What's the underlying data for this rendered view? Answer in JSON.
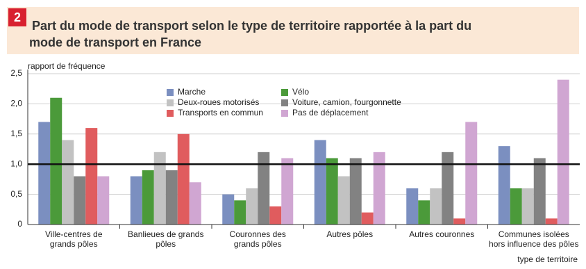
{
  "badge": "2",
  "chart_data": {
    "type": "bar",
    "title": "Part du mode de transport selon le type de territoire rapportée à la part du mode de transport en France",
    "y_label": "rapport de fréquence",
    "x_label": "type de territoire",
    "categories": [
      "Ville-centres de\ngrands pôles",
      "Banlieues de grands\npôles",
      "Couronnes des\ngrands pôles",
      "Autres pôles",
      "Autres couronnes",
      "Communes isolées\nhors influence des pôles"
    ],
    "series": [
      {
        "name": "Marche",
        "color": "#7b8fc0",
        "values": [
          1.7,
          0.8,
          0.5,
          1.4,
          0.6,
          1.3
        ]
      },
      {
        "name": "Vélo",
        "color": "#4b9a3a",
        "values": [
          2.1,
          0.9,
          0.4,
          1.1,
          0.4,
          0.6
        ]
      },
      {
        "name": "Deux-roues motorisés",
        "color": "#c2c2c2",
        "values": [
          1.4,
          1.2,
          0.6,
          0.8,
          0.6,
          0.6
        ]
      },
      {
        "name": "Voiture, camion, fourgonnette",
        "color": "#828282",
        "values": [
          0.8,
          0.9,
          1.2,
          1.1,
          1.2,
          1.1
        ]
      },
      {
        "name": "Transports en commun",
        "color": "#e05c5e",
        "values": [
          1.6,
          1.5,
          0.3,
          0.2,
          0.1,
          0.1
        ]
      },
      {
        "name": "Pas de déplacement",
        "color": "#d0a6d2",
        "values": [
          0.8,
          0.7,
          1.1,
          1.2,
          1.7,
          2.4
        ]
      }
    ],
    "ylim": [
      0,
      2.5
    ],
    "yticks": [
      0,
      {
        "value": 0.5,
        "label": "0,5"
      },
      {
        "value": 1,
        "label": "1,0"
      },
      {
        "value": 1.5,
        "label": "1,5"
      },
      {
        "value": 2,
        "label": "2,0"
      },
      {
        "value": 2.5,
        "label": "2,5"
      }
    ],
    "reference_line": 1,
    "grid": true
  }
}
